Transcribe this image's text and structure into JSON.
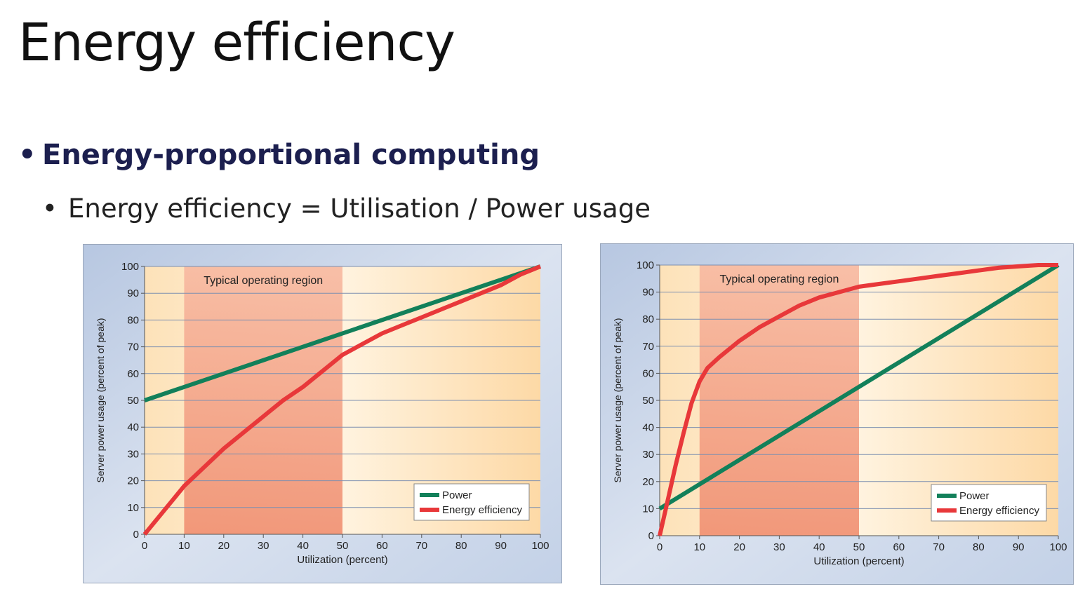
{
  "slide": {
    "title": "Energy efficiency",
    "bullets": [
      {
        "text": "Energy-proportional computing",
        "bullet": "•"
      },
      {
        "text": "Energy efficiency = Utilisation / Power usage",
        "bullet": "•"
      }
    ]
  },
  "colors": {
    "power": "#12805a",
    "energy_efficiency": "#e8383a",
    "operating_region": "#f19a7f",
    "plot_background": "#fde9c9",
    "panel_background": "#c9d6ea"
  },
  "chart_data": [
    {
      "type": "line",
      "xlabel": "Utilization (percent)",
      "ylabel": "Server power usage (percent of peak)",
      "xlim": [
        0,
        100
      ],
      "ylim": [
        0,
        100
      ],
      "xticks": [
        "0",
        "10",
        "20",
        "30",
        "40",
        "50",
        "60",
        "70",
        "80",
        "90",
        "100"
      ],
      "yticks": [
        "0",
        "10",
        "20",
        "30",
        "40",
        "50",
        "60",
        "70",
        "80",
        "90",
        "100"
      ],
      "grid": true,
      "legend_position": "bottom-right",
      "region": {
        "label": "Typical operating region",
        "x": [
          10,
          50
        ]
      },
      "series": [
        {
          "name": "Power",
          "color": "#12805a",
          "x": [
            0,
            100
          ],
          "y": [
            50,
            100
          ]
        },
        {
          "name": "Energy efficiency",
          "color": "#e8383a",
          "x": [
            0,
            5,
            10,
            15,
            20,
            25,
            30,
            35,
            40,
            45,
            50,
            55,
            60,
            65,
            70,
            75,
            80,
            85,
            90,
            95,
            100
          ],
          "y": [
            0,
            9,
            18,
            25,
            32,
            38,
            44,
            50,
            55,
            61,
            67,
            71,
            75,
            78,
            81,
            84,
            87,
            90,
            93,
            97,
            100
          ]
        }
      ]
    },
    {
      "type": "line",
      "xlabel": "Utilization (percent)",
      "ylabel": "Server power usage (percent of peak)",
      "xlim": [
        0,
        100
      ],
      "ylim": [
        0,
        100
      ],
      "xticks": [
        "0",
        "10",
        "20",
        "30",
        "40",
        "50",
        "60",
        "70",
        "80",
        "90",
        "100"
      ],
      "yticks": [
        "0",
        "10",
        "20",
        "30",
        "40",
        "50",
        "60",
        "70",
        "80",
        "90",
        "100"
      ],
      "grid": true,
      "legend_position": "bottom-right",
      "region": {
        "label": "Typical operating region",
        "x": [
          10,
          50
        ]
      },
      "series": [
        {
          "name": "Power",
          "color": "#12805a",
          "x": [
            0,
            100
          ],
          "y": [
            10,
            100
          ]
        },
        {
          "name": "Energy efficiency",
          "color": "#e8383a",
          "x": [
            0,
            2,
            4,
            6,
            8,
            10,
            12,
            15,
            20,
            25,
            30,
            35,
            40,
            45,
            50,
            55,
            60,
            65,
            70,
            75,
            80,
            85,
            90,
            95,
            100
          ],
          "y": [
            0,
            13,
            26,
            38,
            49,
            57,
            62,
            66,
            72,
            77,
            81,
            85,
            88,
            90,
            92,
            93,
            94,
            95,
            96,
            97,
            98,
            99,
            99.5,
            100,
            100
          ]
        }
      ]
    }
  ]
}
